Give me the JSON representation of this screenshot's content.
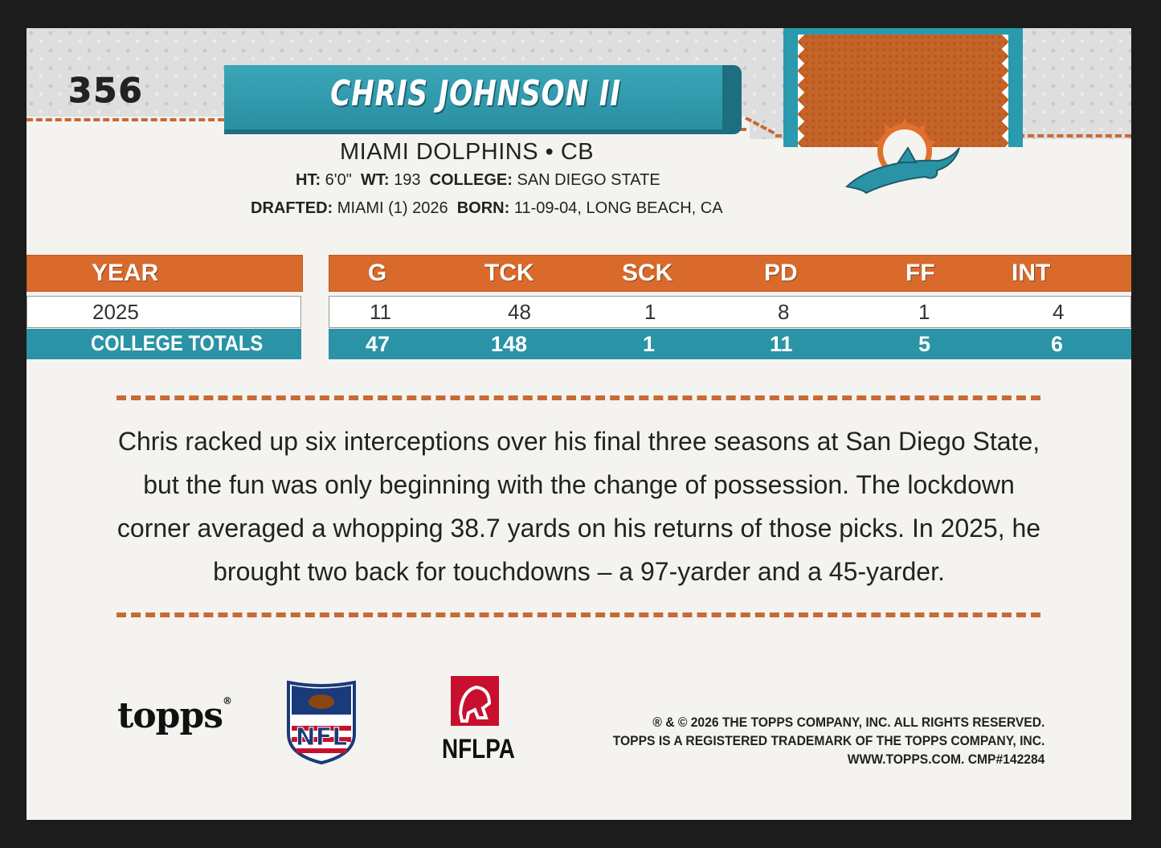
{
  "card": {
    "number": "356",
    "player_name": "CHRIS JOHNSON II",
    "team_position": "MIAMI DOLPHINS • CB",
    "bio": {
      "ht_label": "HT:",
      "ht_value": "6'0\"",
      "wt_label": "WT:",
      "wt_value": "193",
      "college_label": "COLLEGE:",
      "college_value": "SAN DIEGO STATE",
      "drafted_label": "DRAFTED:",
      "drafted_value": "MIAMI (1) 2026",
      "born_label": "BORN:",
      "born_value": "11-09-04, LONG BEACH, CA"
    }
  },
  "stats": {
    "year_header": "YEAR",
    "columns": [
      "G",
      "TCK",
      "SCK",
      "PD",
      "FF",
      "INT"
    ],
    "rows": [
      {
        "label": "2025",
        "values": [
          "11",
          "48",
          "1",
          "8",
          "1",
          "4"
        ]
      },
      {
        "label": "COLLEGE TOTALS",
        "values": [
          "47",
          "148",
          "1",
          "11",
          "5",
          "6"
        ]
      }
    ]
  },
  "blurb": "Chris racked up six interceptions over his final three seasons at San Diego State, but the fun was only beginning with the change of possession. The lockdown corner averaged a whopping 38.7 yards on his returns of those picks. In 2025, he brought two back for touchdowns – a 97-yarder and a 45-yarder.",
  "logos": {
    "topps": "topps",
    "nfl": "NFL",
    "nflpa": "NFLPA"
  },
  "legal": {
    "line1": "® & © 2026 THE TOPPS COMPANY, INC. ALL RIGHTS RESERVED.",
    "line2": "TOPPS IS A REGISTERED TRADEMARK OF THE TOPPS COMPANY, INC.",
    "line3": "WWW.TOPPS.COM. CMP#142284"
  },
  "colors": {
    "orange": "#d96a2b",
    "teal": "#2a93a6",
    "background": "#f4f3f0"
  }
}
